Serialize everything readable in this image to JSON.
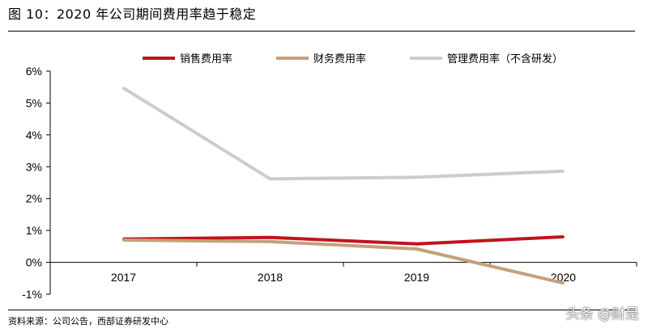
{
  "figure": {
    "title": "图 10：2020 年公司期间费用率趋于稳定",
    "source": "资料来源：公司公告，西部证券研发中心",
    "watermark": "头条 @财是"
  },
  "chart_data": {
    "type": "line",
    "title": "",
    "xlabel": "",
    "ylabel": "",
    "x": [
      "2017",
      "2018",
      "2019",
      "2020"
    ],
    "ylim": [
      -0.01,
      0.06
    ],
    "y_ticks": [
      -0.01,
      0,
      0.01,
      0.02,
      0.03,
      0.04,
      0.05,
      0.06
    ],
    "y_tick_labels": [
      "-1%",
      "0%",
      "1%",
      "2%",
      "3%",
      "4%",
      "5%",
      "6%"
    ],
    "grid": false,
    "legend_position": "top",
    "series": [
      {
        "name": "销售费用率",
        "color": "#c0141c",
        "values": [
          0.0073,
          0.0078,
          0.0058,
          0.008
        ]
      },
      {
        "name": "财务费用率",
        "color": "#c4a07a",
        "values": [
          0.007,
          0.0065,
          0.0042,
          -0.0065
        ]
      },
      {
        "name": "管理费用率（不含研发）",
        "color": "#cccccc",
        "values": [
          0.0547,
          0.0262,
          0.0267,
          0.0286
        ]
      }
    ]
  }
}
